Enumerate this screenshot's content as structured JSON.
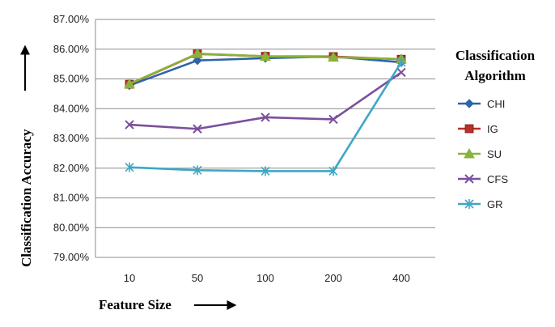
{
  "chart_data": {
    "type": "line",
    "title": "",
    "xlabel": "Feature Size",
    "ylabel": "Classification Accuracy",
    "categories": [
      "10",
      "50",
      "100",
      "200",
      "400"
    ],
    "ylim": [
      79,
      87
    ],
    "y_tick_labels": [
      "79.00%",
      "80.00%",
      "81.00%",
      "82.00%",
      "83.00%",
      "84.00%",
      "85.00%",
      "86.00%",
      "87.00%"
    ],
    "grid": true,
    "legend_title": [
      "Classification",
      "Algorithm"
    ],
    "legend_position": "right",
    "series": [
      {
        "name": "CHI",
        "color": "#2e64a8",
        "marker": "diamond",
        "values": [
          84.78,
          85.62,
          85.7,
          85.75,
          85.56
        ]
      },
      {
        "name": "IG",
        "color": "#b8302a",
        "marker": "square",
        "values": [
          84.82,
          85.84,
          85.76,
          85.75,
          85.66
        ]
      },
      {
        "name": "SU",
        "color": "#8ab23a",
        "marker": "triangle",
        "values": [
          84.83,
          85.85,
          85.76,
          85.73,
          85.67
        ]
      },
      {
        "name": "CFS",
        "color": "#7a4f9c",
        "marker": "x",
        "values": [
          83.46,
          83.32,
          83.71,
          83.64,
          85.22
        ]
      },
      {
        "name": "GR",
        "color": "#3fa7c4",
        "marker": "asterisk",
        "values": [
          82.03,
          81.93,
          81.9,
          81.9,
          85.56
        ]
      }
    ]
  }
}
